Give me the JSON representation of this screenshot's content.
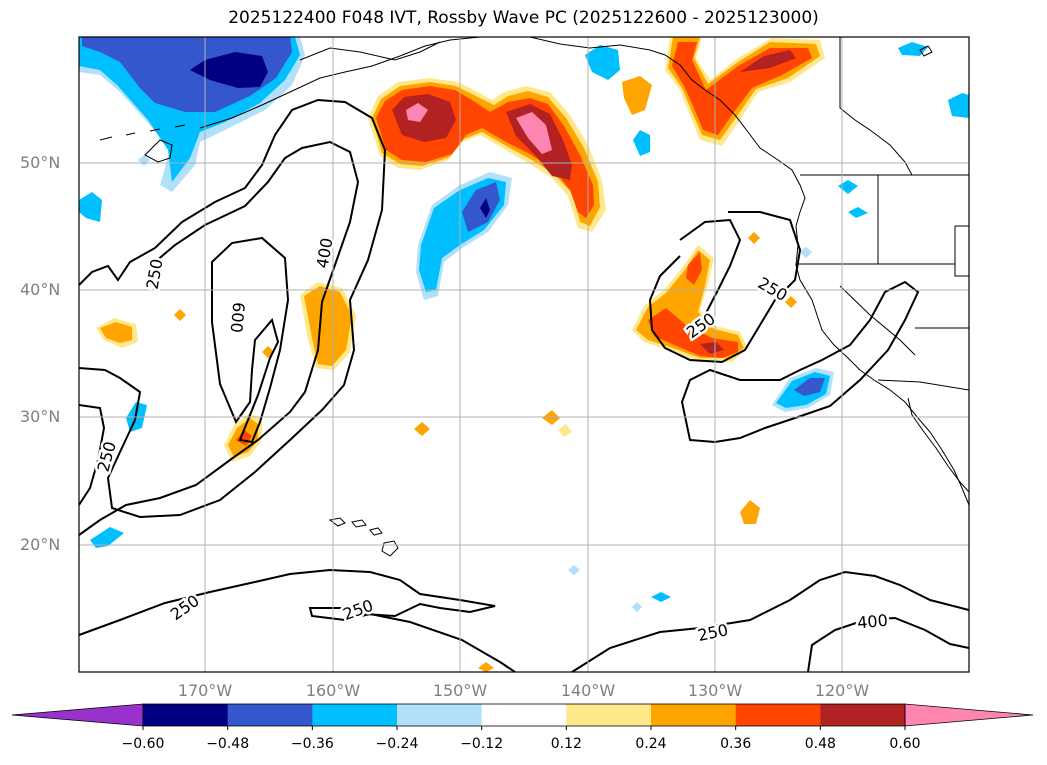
{
  "title": "2025122400 F048 IVT, Rossby Wave PC (2025122600 - 2025123000)",
  "map": {
    "lat_labels": [
      "50°N",
      "40°N",
      "30°N",
      "20°N"
    ],
    "lon_labels": [
      "170°W",
      "160°W",
      "150°W",
      "140°W",
      "130°W",
      "120°W"
    ],
    "contour_labels": [
      "250",
      "400",
      "600",
      "250",
      "250",
      "250",
      "250",
      "250",
      "400",
      "250"
    ]
  },
  "colorbar": {
    "tick_labels": [
      "−0.60",
      "−0.48",
      "−0.36",
      "−0.24",
      "−0.12",
      "0.12",
      "0.24",
      "0.36",
      "0.48",
      "0.60"
    ],
    "colors": [
      "#9932cc",
      "#000080",
      "#3557cc",
      "#00bfff",
      "#b0e0fa",
      "#ffffff",
      "#ffe88a",
      "#ffa500",
      "#ff4500",
      "#b22222",
      "#ff86b0"
    ]
  },
  "colors": {
    "neg_strong": "#000080",
    "neg_mid": "#3557cc",
    "neg_light": "#00bfff",
    "neg_faint": "#b0e0fa",
    "pos_faint": "#ffe88a",
    "pos_light": "#ffa500",
    "pos_mid": "#ff4500",
    "pos_strong": "#b22222",
    "pos_max": "#ff86b0",
    "grid": "#b0b0b0"
  }
}
